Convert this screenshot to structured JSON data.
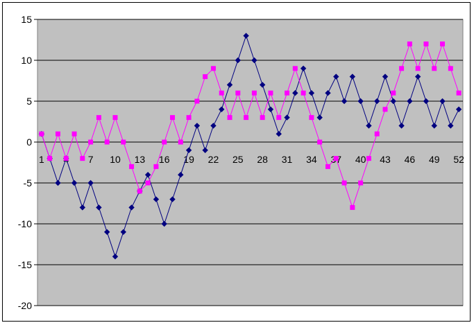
{
  "chart_data": {
    "type": "line",
    "title": "",
    "xlabel": "",
    "ylabel": "",
    "ylim": [
      -20,
      15
    ],
    "yticks": [
      15,
      10,
      5,
      0,
      -5,
      -10,
      -15,
      -20
    ],
    "x": [
      1,
      2,
      3,
      4,
      5,
      6,
      7,
      8,
      9,
      10,
      11,
      12,
      13,
      14,
      15,
      16,
      17,
      18,
      19,
      20,
      21,
      22,
      23,
      24,
      25,
      26,
      27,
      28,
      29,
      30,
      31,
      32,
      33,
      34,
      35,
      36,
      37,
      38,
      39,
      40,
      41,
      42,
      43,
      44,
      45,
      46,
      47,
      48,
      49,
      50,
      51,
      52
    ],
    "xtick_labels": [
      "1",
      "4",
      "7",
      "10",
      "13",
      "16",
      "19",
      "22",
      "25",
      "28",
      "31",
      "34",
      "37",
      "40",
      "43",
      "46",
      "49",
      "52"
    ],
    "grid": "horizontal",
    "legend": "none",
    "plot_background": "#c0c0c0",
    "series": [
      {
        "color": "#000080",
        "marker": "diamond",
        "values": [
          1,
          -2,
          -5,
          -2,
          -5,
          -8,
          -5,
          -8,
          -11,
          -14,
          -11,
          -8,
          -6,
          -4,
          -7,
          -10,
          -7,
          -4,
          -1,
          2,
          -1,
          2,
          4,
          7,
          10,
          13,
          10,
          7,
          4,
          1,
          3,
          6,
          9,
          6,
          3,
          6,
          8,
          5,
          8,
          5,
          2,
          5,
          8,
          5,
          2,
          5,
          8,
          5,
          2,
          5,
          2,
          4
        ]
      },
      {
        "color": "#ff00ff",
        "marker": "square",
        "values": [
          1,
          -2,
          1,
          -2,
          1,
          -2,
          0,
          3,
          0,
          3,
          0,
          -3,
          -6,
          -5,
          -3,
          0,
          3,
          0,
          3,
          5,
          8,
          9,
          6,
          3,
          6,
          3,
          6,
          3,
          6,
          3,
          6,
          9,
          6,
          3,
          0,
          -3,
          -2,
          -5,
          -8,
          -5,
          -2,
          1,
          4,
          6,
          9,
          12,
          9,
          12,
          9,
          12,
          9,
          6
        ]
      }
    ]
  }
}
